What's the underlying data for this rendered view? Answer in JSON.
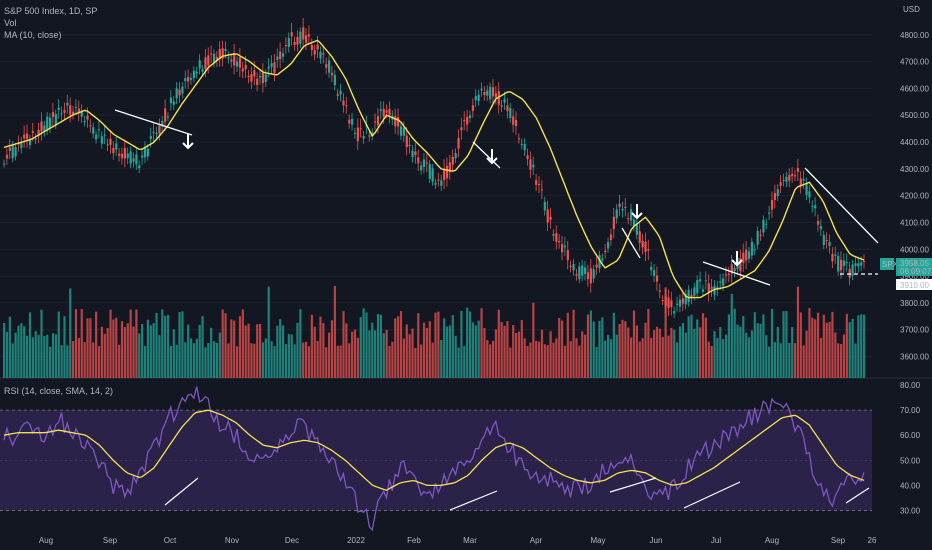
{
  "legend": {
    "symbol": "S&P 500 Index, 1D, SP",
    "volume": "Vol",
    "ma": "MA (10, close)",
    "rsi": "RSI (14, close, SMA, 14, 2)"
  },
  "currency": "USD",
  "price_label": "3958.05",
  "price_countdown": "06:09:07",
  "price_label_symbol": "SPX",
  "support_label": "3910.00",
  "colors": {
    "background": "#131722",
    "up": "#26a69a",
    "down": "#ef5350",
    "ma": "#f5e050",
    "rsi": "#7e57c2",
    "rsi_ma": "#f5e050",
    "rsi_band": "#2a2249",
    "trendline": "#ffffff"
  },
  "chart_data": [
    {
      "type": "line",
      "title": "S&P 500 Index, 1D, SP",
      "series": [
        {
          "name": "MA (10, close)",
          "values": [
            4380,
            4395,
            4410,
            4440,
            4470,
            4500,
            4520,
            4480,
            4430,
            4400,
            4370,
            4400,
            4460,
            4540,
            4610,
            4680,
            4720,
            4730,
            4700,
            4660,
            4650,
            4690,
            4760,
            4780,
            4720,
            4640,
            4520,
            4420,
            4500,
            4480,
            4410,
            4360,
            4300,
            4290,
            4350,
            4460,
            4560,
            4590,
            4560,
            4490,
            4380,
            4250,
            4120,
            4010,
            3930,
            3960,
            4080,
            4120,
            4050,
            3900,
            3820,
            3820,
            3850,
            3860,
            3890,
            3920,
            3990,
            4100,
            4230,
            4250,
            4180,
            4060,
            3980,
            3960
          ]
        },
        {
          "name": "Price",
          "values": [
            4350,
            4380,
            4420,
            4460,
            4500,
            4530,
            4490,
            4420,
            4380,
            4350,
            4320,
            4420,
            4520,
            4600,
            4670,
            4710,
            4740,
            4700,
            4650,
            4630,
            4690,
            4780,
            4800,
            4740,
            4660,
            4530,
            4420,
            4450,
            4530,
            4460,
            4350,
            4300,
            4250,
            4350,
            4500,
            4600,
            4580,
            4520,
            4400,
            4260,
            4100,
            3990,
            3920,
            3900,
            3990,
            4150,
            4120,
            4000,
            3850,
            3780,
            3820,
            3870,
            3840,
            3900,
            3950,
            4020,
            4130,
            4260,
            4290,
            4200,
            4050,
            3950,
            3920,
            3958
          ]
        }
      ],
      "ylim": [
        3520,
        4900
      ],
      "yticks": [
        3600,
        3700,
        3800,
        3900,
        4000,
        4100,
        4200,
        4300,
        4400,
        4500,
        4600,
        4700,
        4800
      ],
      "xticks": [
        "Aug",
        "Sep",
        "Oct",
        "Nov",
        "Dec",
        "2022",
        "Feb",
        "Mar",
        "Apr",
        "May",
        "Jun",
        "Jul",
        "Aug",
        "Sep",
        "26"
      ]
    },
    {
      "type": "line",
      "title": "RSI (14, close, SMA, 14, 2)",
      "series": [
        {
          "name": "RSI",
          "values": [
            62,
            58,
            64,
            60,
            66,
            62,
            58,
            48,
            40,
            36,
            44,
            56,
            66,
            74,
            78,
            72,
            64,
            60,
            52,
            48,
            56,
            62,
            64,
            56,
            48,
            42,
            32,
            26,
            36,
            48,
            42,
            36,
            40,
            44,
            50,
            58,
            64,
            56,
            48,
            44,
            42,
            40,
            38,
            40,
            46,
            52,
            48,
            40,
            36,
            38,
            46,
            52,
            56,
            60,
            64,
            68,
            72,
            74,
            64,
            50,
            38,
            34,
            46,
            42
          ]
        },
        {
          "name": "RSI MA",
          "values": [
            60,
            61,
            61,
            61,
            62,
            61,
            60,
            56,
            50,
            45,
            43,
            47,
            55,
            63,
            69,
            70,
            68,
            65,
            60,
            56,
            55,
            57,
            58,
            57,
            54,
            50,
            45,
            40,
            38,
            41,
            42,
            40,
            40,
            41,
            44,
            50,
            55,
            57,
            55,
            51,
            47,
            44,
            42,
            41,
            42,
            45,
            46,
            45,
            42,
            40,
            41,
            44,
            47,
            51,
            55,
            59,
            63,
            67,
            68,
            64,
            56,
            48,
            44,
            42
          ]
        }
      ],
      "ylim": [
        25,
        82
      ],
      "yticks": [
        30,
        40,
        50,
        60,
        70,
        80
      ],
      "bands": [
        30,
        70
      ]
    }
  ]
}
